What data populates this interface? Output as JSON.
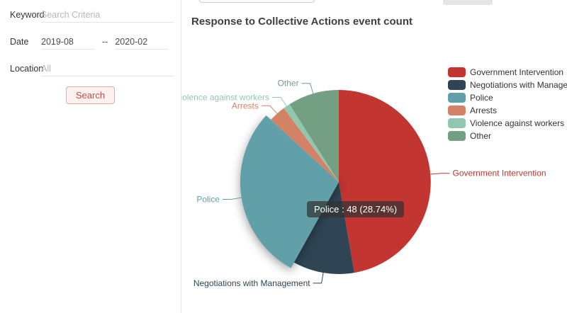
{
  "sidebar": {
    "keyword_label": "Keyword",
    "keyword_placeholder": "Search Criteria",
    "date_label": "Date",
    "date_from": "2019-08",
    "date_separator": "--",
    "date_to": "2020-02",
    "location_label": "Location",
    "location_placeholder": "All",
    "search_button_label": "Search"
  },
  "main": {
    "chart_title": "Response to Collective Actions event count",
    "tooltip_text": "Police : 48 (28.74%)"
  },
  "chart_data": {
    "type": "pie",
    "title": "Response to Collective Actions event count",
    "categories": [
      "Government Intervention",
      "Negotiations with Management",
      "Police",
      "Arrests",
      "Violence against workers",
      "Other"
    ],
    "values": [
      79,
      18,
      48,
      5,
      2,
      15
    ],
    "total": 167,
    "colors": [
      "#c23531",
      "#2f4554",
      "#61a0a8",
      "#d48265",
      "#91c7ae",
      "#749f83"
    ],
    "selected_slice": "Police",
    "selected_tooltip": {
      "label": "Police",
      "value": 48,
      "percent": "28.74%"
    },
    "legend_position": "right",
    "labels": "outside-with-leader-lines",
    "start_angle": "12-oclock-clockwise"
  }
}
